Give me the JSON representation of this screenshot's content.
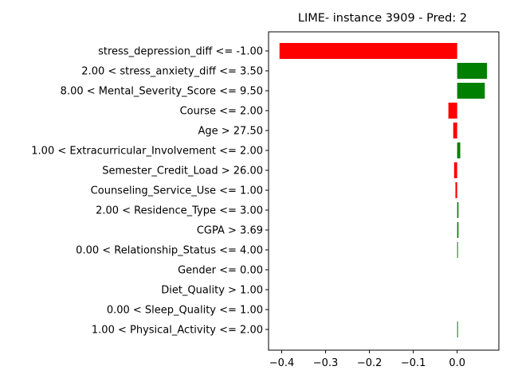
{
  "chart_data": {
    "type": "bar",
    "orientation": "horizontal",
    "title": "LIME- instance 3909 - Pred: 2",
    "xlabel": "",
    "ylabel": "",
    "xlim": [
      -0.43,
      0.095
    ],
    "xticks": [
      -0.4,
      -0.3,
      -0.2,
      -0.1,
      0.0
    ],
    "xtick_labels": [
      "−0.4",
      "−0.3",
      "−0.2",
      "−0.1",
      "0.0"
    ],
    "grid": false,
    "legend": "none",
    "colors": {
      "positive": "#008000",
      "negative": "#ff0000"
    },
    "categories": [
      "stress_depression_diff <= -1.00",
      "2.00 < stress_anxiety_diff <= 3.50",
      "8.00 < Mental_Severity_Score <= 9.50",
      "Course <= 2.00",
      "Age > 27.50",
      "1.00 < Extracurricular_Involvement <= 2.00",
      "Semester_Credit_Load > 26.00",
      "Counseling_Service_Use <= 1.00",
      "2.00 < Residence_Type <= 3.00",
      "CGPA > 3.69",
      "0.00 < Relationship_Status <= 4.00",
      "Gender <= 0.00",
      "Diet_Quality > 1.00",
      "0.00 < Sleep_Quality <= 1.00",
      "1.00 < Physical_Activity <= 2.00"
    ],
    "values": [
      -0.405,
      0.068,
      0.063,
      -0.02,
      -0.009,
      0.007,
      -0.007,
      -0.004,
      0.003,
      0.003,
      0.001,
      0.0,
      0.0,
      0.0,
      0.001
    ]
  }
}
